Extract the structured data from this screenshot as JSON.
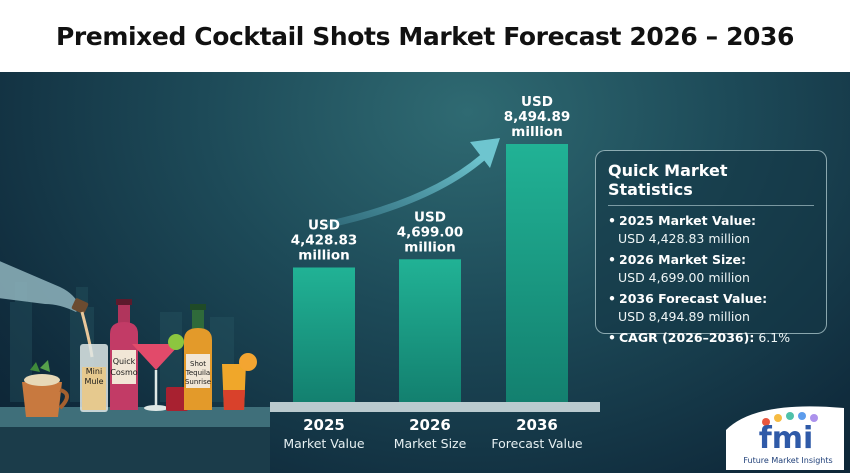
{
  "title": "Premixed Cocktail Shots Market Forecast 2026 – 2036",
  "chart_data": {
    "type": "bar",
    "categories": [
      "2025",
      "2026",
      "2036"
    ],
    "sublabels": [
      "Market Value",
      "Market Size",
      "Forecast Value"
    ],
    "values": [
      4428.83,
      4699.0,
      8494.89
    ],
    "value_labels": [
      [
        "USD",
        "4,428.83",
        "million"
      ],
      [
        "USD",
        "4,699.00",
        "million"
      ],
      [
        "USD",
        "8,494.89",
        "million"
      ]
    ],
    "unit": "USD million",
    "bar_color": "#1a9e86",
    "grid": false
  },
  "stats": {
    "title": "Quick Market Statistics",
    "items": [
      {
        "label": "2025 Market Value:",
        "value": "USD 4,428.83 million"
      },
      {
        "label": "2026 Market Size:",
        "value": "USD 4,699.00 million"
      },
      {
        "label": "2036 Forecast Value:",
        "value": "USD 8,494.89 million"
      },
      {
        "label": "CAGR (2026–2036):",
        "value": "6.1%"
      }
    ]
  },
  "illustration": {
    "labels": [
      "Mini Mule",
      "Quick Cosmo",
      "Shot Tequila Sunrise"
    ]
  },
  "logo": {
    "text": "fmi",
    "caption": "Future Market Insights"
  },
  "colors": {
    "background_dark": "#102c3d",
    "bar": "#1a9e86",
    "arrow": "#5fb7c0",
    "title_text": "#111111"
  }
}
